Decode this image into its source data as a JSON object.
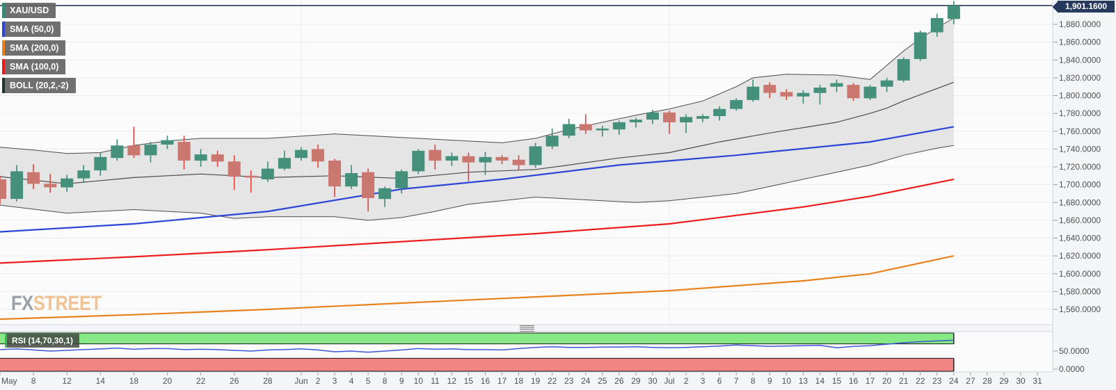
{
  "instrument": {
    "symbol": "XAU/USD",
    "current_price": "1,901.1600"
  },
  "legend": [
    {
      "label": "XAU/USD",
      "color": "#2e8b74"
    },
    {
      "label": "SMA (50,0)",
      "color": "#2c45d6"
    },
    {
      "label": "SMA (200,0)",
      "color": "#e8821d"
    },
    {
      "label": "SMA (100,0)",
      "color": "#ed1c1c"
    },
    {
      "label": "BOLL (20,2,-2)",
      "color": "#223330"
    }
  ],
  "rsi_label": "RSI (14,70,30,1)",
  "watermark": {
    "fx": "FX",
    "street": "STREET"
  },
  "y_axis": {
    "labels": [
      "1,880.0000",
      "1,860.0000",
      "1,840.0000",
      "1,820.0000",
      "1,800.0000",
      "1,780.0000",
      "1,760.0000",
      "1,740.0000",
      "1,720.0000",
      "1,700.0000",
      "1,680.0000",
      "1,660.0000",
      "1,640.0000",
      "1,620.0000",
      "1,600.0000",
      "1,580.0000",
      "1,560.0000"
    ],
    "values": [
      1880,
      1860,
      1840,
      1820,
      1800,
      1780,
      1760,
      1740,
      1720,
      1700,
      1680,
      1660,
      1640,
      1620,
      1600,
      1580,
      1560
    ]
  },
  "rsi_axis": {
    "labels": [
      "50.0000",
      "0.0000"
    ],
    "values": [
      50,
      0
    ]
  },
  "x_axis": {
    "ticks": [
      [
        0,
        "May"
      ],
      [
        2,
        "8"
      ],
      [
        4,
        "12"
      ],
      [
        6,
        "14"
      ],
      [
        8,
        "18"
      ],
      [
        10,
        "20"
      ],
      [
        12,
        "22"
      ],
      [
        14,
        "26"
      ],
      [
        16,
        "28"
      ],
      [
        18,
        "Jun"
      ],
      [
        19,
        "2"
      ],
      [
        20,
        "3"
      ],
      [
        21,
        "4"
      ],
      [
        22,
        "5"
      ],
      [
        23,
        "8"
      ],
      [
        24,
        "9"
      ],
      [
        25,
        "10"
      ],
      [
        26,
        "11"
      ],
      [
        27,
        "12"
      ],
      [
        28,
        "15"
      ],
      [
        29,
        "16"
      ],
      [
        30,
        "17"
      ],
      [
        31,
        "18"
      ],
      [
        32,
        "19"
      ],
      [
        33,
        "22"
      ],
      [
        34,
        "23"
      ],
      [
        35,
        "24"
      ],
      [
        36,
        "25"
      ],
      [
        37,
        "26"
      ],
      [
        38,
        "29"
      ],
      [
        39,
        "30"
      ],
      [
        40,
        "Jul"
      ],
      [
        41,
        "2"
      ],
      [
        42,
        "3"
      ],
      [
        43,
        "6"
      ],
      [
        44,
        "7"
      ],
      [
        45,
        "8"
      ],
      [
        46,
        "9"
      ],
      [
        47,
        "10"
      ],
      [
        48,
        "13"
      ],
      [
        49,
        "14"
      ],
      [
        50,
        "15"
      ],
      [
        51,
        "16"
      ],
      [
        52,
        "17"
      ],
      [
        53,
        "20"
      ],
      [
        54,
        "21"
      ],
      [
        55,
        "22"
      ],
      [
        56,
        "23"
      ],
      [
        57,
        "24"
      ],
      [
        58,
        "27"
      ],
      [
        59,
        "28"
      ],
      [
        60,
        "29"
      ],
      [
        61,
        "30"
      ],
      [
        62,
        "31"
      ]
    ]
  },
  "colors": {
    "up": "#44907b",
    "up_wick": "#3f8a75",
    "down": "#c9776f",
    "down_wick": "#d9453a",
    "sma50": "#2c45d6",
    "sma100": "#ed1c1c",
    "sma200": "#e8821d",
    "boll_fill": "#e1e1e2",
    "boll_line": "#4a4a4a",
    "price_line": "#26395c",
    "grid": "#ebecee",
    "pane_border": "#ccd3df",
    "plot_bg": "#fbfbfc",
    "rsi_line": "#3d56d4",
    "rsi_green": "#86e986",
    "rsi_red": "#f28484",
    "band_edge": "#161616",
    "axis_text": "#4f4f4f",
    "tick": "#999999",
    "watermark_fx": "#9aa0a8",
    "watermark_street": "#f0c394"
  },
  "chart_data": {
    "type": "candlestick+indicators",
    "title": "XAU/USD daily with SMA(50), SMA(100), SMA(200), Bollinger(20,2,-2) and RSI(14,70,30,1)",
    "price_axis": {
      "min": 1560,
      "max": 1880,
      "tick_step": 20
    },
    "current_price": 1901.16,
    "candles": [
      [
        "May 6",
        1706,
        1710,
        1678,
        1684
      ],
      [
        "May 7",
        1684,
        1722,
        1681,
        1715
      ],
      [
        "May 8",
        1714,
        1723,
        1695,
        1701
      ],
      [
        "May 11",
        1701,
        1712,
        1691,
        1697
      ],
      [
        "May 12",
        1697,
        1711,
        1692,
        1707
      ],
      [
        "May 13",
        1707,
        1722,
        1702,
        1716
      ],
      [
        "May 14",
        1716,
        1736,
        1710,
        1731
      ],
      [
        "May 15",
        1730,
        1751,
        1727,
        1744
      ],
      [
        "May 18",
        1744,
        1765,
        1730,
        1733
      ],
      [
        "May 19",
        1733,
        1748,
        1725,
        1745
      ],
      [
        "May 20",
        1745,
        1755,
        1740,
        1750
      ],
      [
        "May 21",
        1748,
        1755,
        1717,
        1727
      ],
      [
        "May 22",
        1727,
        1740,
        1720,
        1734
      ],
      [
        "May 25",
        1734,
        1738,
        1720,
        1726
      ],
      [
        "May 26",
        1726,
        1733,
        1694,
        1709
      ],
      [
        "May 27",
        1710,
        1716,
        1691,
        1708
      ],
      [
        "May 28",
        1706,
        1726,
        1703,
        1718
      ],
      [
        "May 29",
        1718,
        1738,
        1716,
        1730
      ],
      [
        "Jun 1",
        1730,
        1742,
        1727,
        1739
      ],
      [
        "Jun 2",
        1740,
        1745,
        1719,
        1726
      ],
      [
        "Jun 3",
        1727,
        1729,
        1686,
        1698
      ],
      [
        "Jun 4",
        1698,
        1722,
        1695,
        1713
      ],
      [
        "Jun 5",
        1714,
        1718,
        1670,
        1685
      ],
      [
        "Jun 8",
        1684,
        1698,
        1675,
        1696
      ],
      [
        "Jun 9",
        1696,
        1717,
        1690,
        1715
      ],
      [
        "Jun 10",
        1715,
        1740,
        1712,
        1738
      ],
      [
        "Jun 11",
        1739,
        1745,
        1717,
        1727
      ],
      [
        "Jun 12",
        1727,
        1736,
        1721,
        1732
      ],
      [
        "Jun 15",
        1732,
        1736,
        1704,
        1725
      ],
      [
        "Jun 16",
        1725,
        1737,
        1711,
        1731
      ],
      [
        "Jun 17",
        1731,
        1733,
        1723,
        1727
      ],
      [
        "Jun 18",
        1728,
        1733,
        1716,
        1722
      ],
      [
        "Jun 19",
        1722,
        1747,
        1719,
        1743
      ],
      [
        "Jun 22",
        1743,
        1763,
        1740,
        1755
      ],
      [
        "Jun 23",
        1755,
        1774,
        1752,
        1768
      ],
      [
        "Jun 24",
        1768,
        1779,
        1757,
        1761
      ],
      [
        "Jun 25",
        1761,
        1766,
        1754,
        1763
      ],
      [
        "Jun 26",
        1762,
        1772,
        1756,
        1770
      ],
      [
        "Jun 29",
        1770,
        1775,
        1764,
        1773
      ],
      [
        "Jun 30",
        1773,
        1784,
        1768,
        1781
      ],
      [
        "Jul 1",
        1781,
        1783,
        1757,
        1770
      ],
      [
        "Jul 2",
        1770,
        1779,
        1758,
        1776
      ],
      [
        "Jul 3",
        1774,
        1779,
        1770,
        1777
      ],
      [
        "Jul 6",
        1777,
        1788,
        1772,
        1785
      ],
      [
        "Jul 7",
        1785,
        1797,
        1783,
        1795
      ],
      [
        "Jul 8",
        1795,
        1818,
        1793,
        1810
      ],
      [
        "Jul 9",
        1812,
        1815,
        1797,
        1803
      ],
      [
        "Jul 10",
        1804,
        1807,
        1795,
        1799
      ],
      [
        "Jul 13",
        1799,
        1806,
        1791,
        1803
      ],
      [
        "Jul 14",
        1803,
        1812,
        1790,
        1809
      ],
      [
        "Jul 15",
        1810,
        1818,
        1804,
        1814
      ],
      [
        "Jul 16",
        1812,
        1814,
        1794,
        1797
      ],
      [
        "Jul 17",
        1797,
        1812,
        1795,
        1810
      ],
      [
        "Jul 20",
        1810,
        1820,
        1804,
        1817
      ],
      [
        "Jul 21",
        1817,
        1843,
        1815,
        1841
      ],
      [
        "Jul 22",
        1841,
        1873,
        1839,
        1871
      ],
      [
        "Jul 23",
        1871,
        1892,
        1866,
        1887
      ],
      [
        "Jul 24",
        1886,
        1906,
        1880,
        1901.16
      ]
    ],
    "sma50": [
      [
        0,
        1647
      ],
      [
        8,
        1656
      ],
      [
        16,
        1670
      ],
      [
        24,
        1695
      ],
      [
        30,
        1706
      ],
      [
        37,
        1722
      ],
      [
        44,
        1733
      ],
      [
        52,
        1748
      ],
      [
        57,
        1765
      ]
    ],
    "sma100": [
      [
        0,
        1612
      ],
      [
        8,
        1619
      ],
      [
        16,
        1627
      ],
      [
        24,
        1636
      ],
      [
        32,
        1645
      ],
      [
        40,
        1656
      ],
      [
        48,
        1675
      ],
      [
        52,
        1687
      ],
      [
        57,
        1706
      ]
    ],
    "sma200": [
      [
        0,
        1549
      ],
      [
        8,
        1554
      ],
      [
        16,
        1560
      ],
      [
        24,
        1567
      ],
      [
        32,
        1574
      ],
      [
        40,
        1581
      ],
      [
        48,
        1592
      ],
      [
        52,
        1600
      ],
      [
        57,
        1620
      ]
    ],
    "bollinger": {
      "upper": [
        [
          0,
          1742
        ],
        [
          2,
          1739
        ],
        [
          4,
          1735
        ],
        [
          6,
          1736
        ],
        [
          8,
          1744
        ],
        [
          10,
          1749
        ],
        [
          12,
          1752
        ],
        [
          16,
          1752
        ],
        [
          20,
          1757
        ],
        [
          24,
          1753
        ],
        [
          27,
          1750
        ],
        [
          30,
          1747
        ],
        [
          32,
          1752
        ],
        [
          34,
          1762
        ],
        [
          36,
          1770
        ],
        [
          38,
          1778
        ],
        [
          40,
          1785
        ],
        [
          42,
          1794
        ],
        [
          44,
          1810
        ],
        [
          45,
          1820
        ],
        [
          47,
          1824
        ],
        [
          50,
          1823
        ],
        [
          52,
          1818
        ],
        [
          53,
          1834
        ],
        [
          54,
          1850
        ],
        [
          55,
          1864
        ],
        [
          56,
          1876
        ],
        [
          57,
          1887
        ]
      ],
      "middle": [
        [
          0,
          1709
        ],
        [
          4,
          1701
        ],
        [
          8,
          1708
        ],
        [
          12,
          1712
        ],
        [
          16,
          1708
        ],
        [
          20,
          1710
        ],
        [
          24,
          1707
        ],
        [
          28,
          1714
        ],
        [
          32,
          1717
        ],
        [
          34,
          1722
        ],
        [
          37,
          1730
        ],
        [
          40,
          1736
        ],
        [
          43,
          1748
        ],
        [
          46,
          1758
        ],
        [
          48,
          1764
        ],
        [
          50,
          1770
        ],
        [
          52,
          1780
        ],
        [
          53,
          1786
        ],
        [
          54,
          1794
        ],
        [
          55,
          1801
        ],
        [
          56,
          1808
        ],
        [
          57,
          1815
        ]
      ],
      "lower": [
        [
          0,
          1677
        ],
        [
          4,
          1668
        ],
        [
          8,
          1672
        ],
        [
          12,
          1668
        ],
        [
          14,
          1662
        ],
        [
          16,
          1664
        ],
        [
          20,
          1664
        ],
        [
          22,
          1660
        ],
        [
          24,
          1663
        ],
        [
          26,
          1670
        ],
        [
          28,
          1678
        ],
        [
          30,
          1682
        ],
        [
          32,
          1686
        ],
        [
          34,
          1684
        ],
        [
          36,
          1682
        ],
        [
          38,
          1680
        ],
        [
          40,
          1682
        ],
        [
          42,
          1686
        ],
        [
          44,
          1690
        ],
        [
          46,
          1698
        ],
        [
          48,
          1706
        ],
        [
          50,
          1714
        ],
        [
          52,
          1722
        ],
        [
          54,
          1733
        ],
        [
          56,
          1741
        ],
        [
          57,
          1744
        ]
      ]
    },
    "rsi": {
      "params": "14,70,30,1",
      "scale": [
        0,
        100
      ],
      "overbought_level": 70,
      "oversold_level": 30,
      "values": [
        54,
        56,
        53,
        50,
        52,
        54,
        56,
        58,
        55,
        57,
        57,
        54,
        55,
        54,
        52,
        50,
        53,
        54,
        56,
        53,
        48,
        50,
        47,
        50,
        53,
        57,
        55,
        56,
        54,
        54,
        53,
        57,
        60,
        62,
        60,
        60,
        61,
        61,
        62,
        60,
        59,
        60,
        62,
        64,
        67,
        65,
        63,
        64,
        65,
        66,
        59,
        63,
        65,
        69,
        73,
        76,
        78,
        80
      ]
    }
  }
}
